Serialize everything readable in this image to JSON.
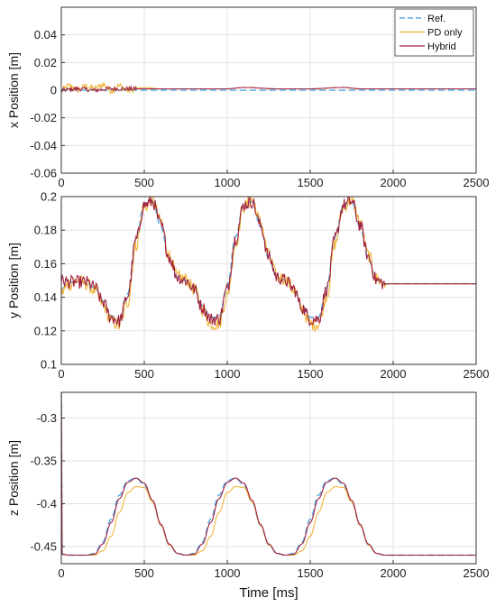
{
  "chart_data": [
    {
      "type": "line",
      "ylabel": "x Position [m]",
      "xlabel": "",
      "xlim": [
        0,
        2500
      ],
      "ylim": [
        -0.06,
        0.06
      ],
      "xticks": [
        0,
        500,
        1000,
        1500,
        2000,
        2500
      ],
      "yticks": [
        -0.06,
        -0.04,
        -0.02,
        0,
        0.02,
        0.04
      ],
      "ytick_labels": [
        "-0.06",
        "-0.04",
        "-0.02",
        "0",
        "0.02",
        "0.04"
      ],
      "grid": true,
      "legend": {
        "placement": "top-right",
        "entries": [
          {
            "label": "Ref.",
            "color": "#5DADE2",
            "style": "dashed"
          },
          {
            "label": "PD only",
            "color": "#F0B43C",
            "style": "solid"
          },
          {
            "label": "Hybrid",
            "color": "#A0203F",
            "style": "solid"
          }
        ]
      },
      "series": [
        {
          "name": "Ref.",
          "color": "#5DADE2",
          "dashed": true,
          "x": [
            0,
            250,
            500,
            750,
            1000,
            1250,
            1500,
            1750,
            2000,
            2250,
            2500
          ],
          "y": [
            0.0,
            0.0,
            0.0,
            0.0,
            0.0,
            0.0,
            0.0,
            0.0,
            0.0,
            0.0,
            0.0
          ]
        },
        {
          "name": "PD only",
          "color": "#F0B43C",
          "x": [
            0,
            50,
            100,
            150,
            200,
            250,
            300,
            350,
            400,
            500,
            600,
            800,
            1000,
            1100,
            1300,
            1500,
            1700,
            1800,
            2000,
            2200,
            2500
          ],
          "y": [
            0.0,
            0.003,
            0.0,
            0.003,
            0.001,
            0.004,
            0.0,
            0.003,
            0.0,
            0.002,
            0.001,
            0.001,
            0.001,
            0.002,
            0.001,
            0.001,
            0.002,
            0.001,
            0.001,
            0.001,
            0.001
          ],
          "noise": 0.0025,
          "noise_until": 450
        },
        {
          "name": "Hybrid",
          "color": "#A0203F",
          "x": [
            0,
            100,
            200,
            300,
            400,
            500,
            600,
            800,
            1000,
            1100,
            1300,
            1500,
            1700,
            1800,
            2000,
            2200,
            2500
          ],
          "y": [
            0.0,
            0.001,
            0.0,
            0.001,
            0.001,
            0.001,
            0.001,
            0.001,
            0.001,
            0.002,
            0.001,
            0.001,
            0.002,
            0.001,
            0.001,
            0.001,
            0.001
          ],
          "noise": 0.0015,
          "noise_until": 450
        }
      ]
    },
    {
      "type": "line",
      "ylabel": "y Position [m]",
      "xlabel": "",
      "xlim": [
        0,
        2500
      ],
      "ylim": [
        0.1,
        0.2
      ],
      "xticks": [
        0,
        500,
        1000,
        1500,
        2000,
        2500
      ],
      "yticks": [
        0.1,
        0.12,
        0.14,
        0.16,
        0.18,
        0.2
      ],
      "ytick_labels": [
        "0.1",
        "0.12",
        "0.14",
        "0.16",
        "0.18",
        "0.2"
      ],
      "grid": true,
      "series": [
        {
          "name": "Ref.",
          "color": "#5DADE2",
          "dashed": true,
          "x": [
            0,
            50,
            100,
            150,
            200,
            250,
            300,
            350,
            400,
            450,
            500,
            550,
            600,
            650,
            700,
            750,
            800,
            850,
            900,
            950,
            1000,
            1050,
            1100,
            1150,
            1200,
            1250,
            1300,
            1350,
            1400,
            1450,
            1500,
            1550,
            1600,
            1650,
            1700,
            1750,
            1800,
            1850,
            1900,
            1950,
            2000,
            2100,
            2200,
            2300,
            2400,
            2500
          ],
          "y": [
            0.145,
            0.149,
            0.149,
            0.149,
            0.146,
            0.138,
            0.129,
            0.126,
            0.142,
            0.175,
            0.196,
            0.197,
            0.182,
            0.163,
            0.152,
            0.15,
            0.145,
            0.135,
            0.128,
            0.128,
            0.146,
            0.176,
            0.195,
            0.197,
            0.182,
            0.163,
            0.152,
            0.15,
            0.145,
            0.135,
            0.128,
            0.128,
            0.146,
            0.176,
            0.195,
            0.197,
            0.182,
            0.163,
            0.15,
            0.148,
            0.148,
            0.148,
            0.148,
            0.148,
            0.148,
            0.148
          ]
        },
        {
          "name": "PD only",
          "color": "#F0B43C",
          "x": [
            0,
            50,
            100,
            150,
            200,
            250,
            300,
            350,
            400,
            450,
            500,
            550,
            600,
            650,
            700,
            750,
            800,
            850,
            900,
            950,
            1000,
            1050,
            1100,
            1150,
            1200,
            1250,
            1300,
            1350,
            1400,
            1450,
            1500,
            1550,
            1600,
            1650,
            1700,
            1750,
            1800,
            1850,
            1900,
            1950,
            2000,
            2100,
            2200,
            2300,
            2400,
            2500
          ],
          "y": [
            0.143,
            0.148,
            0.15,
            0.148,
            0.144,
            0.136,
            0.126,
            0.123,
            0.137,
            0.171,
            0.194,
            0.198,
            0.185,
            0.165,
            0.152,
            0.151,
            0.145,
            0.133,
            0.124,
            0.124,
            0.141,
            0.172,
            0.194,
            0.198,
            0.185,
            0.165,
            0.152,
            0.151,
            0.145,
            0.133,
            0.124,
            0.124,
            0.141,
            0.172,
            0.194,
            0.198,
            0.185,
            0.165,
            0.151,
            0.148,
            0.148,
            0.148,
            0.148,
            0.148,
            0.148,
            0.148
          ],
          "noise": 0.004,
          "noise_until": 1950
        },
        {
          "name": "Hybrid",
          "color": "#A0203F",
          "x": [
            0,
            50,
            100,
            150,
            200,
            250,
            300,
            350,
            400,
            450,
            500,
            550,
            600,
            650,
            700,
            750,
            800,
            850,
            900,
            950,
            1000,
            1050,
            1100,
            1150,
            1200,
            1250,
            1300,
            1350,
            1400,
            1450,
            1500,
            1550,
            1600,
            1650,
            1700,
            1750,
            1800,
            1850,
            1900,
            1950,
            2000,
            2100,
            2200,
            2300,
            2400,
            2500
          ],
          "y": [
            0.15,
            0.149,
            0.149,
            0.149,
            0.146,
            0.137,
            0.128,
            0.126,
            0.141,
            0.174,
            0.195,
            0.197,
            0.183,
            0.164,
            0.152,
            0.15,
            0.145,
            0.134,
            0.127,
            0.127,
            0.145,
            0.175,
            0.195,
            0.197,
            0.183,
            0.164,
            0.152,
            0.15,
            0.145,
            0.134,
            0.127,
            0.127,
            0.145,
            0.175,
            0.195,
            0.197,
            0.183,
            0.164,
            0.15,
            0.148,
            0.148,
            0.148,
            0.148,
            0.148,
            0.148,
            0.148
          ],
          "noise": 0.004,
          "noise_until": 1950
        }
      ]
    },
    {
      "type": "line",
      "ylabel": "z Position [m]",
      "xlabel": "Time  [ms]",
      "xlim": [
        0,
        2500
      ],
      "ylim": [
        -0.47,
        -0.27
      ],
      "xticks": [
        0,
        500,
        1000,
        1500,
        2000,
        2500
      ],
      "yticks": [
        -0.45,
        -0.4,
        -0.35,
        -0.3
      ],
      "ytick_labels": [
        "-0.45",
        "-0.4",
        "-0.35",
        "-0.3"
      ],
      "grid": true,
      "series": [
        {
          "name": "Ref.",
          "color": "#5DADE2",
          "dashed": true,
          "x": [
            0,
            5,
            50,
            100,
            150,
            200,
            250,
            300,
            350,
            400,
            450,
            500,
            550,
            600,
            650,
            700,
            750,
            800,
            850,
            900,
            950,
            1000,
            1050,
            1100,
            1150,
            1200,
            1250,
            1300,
            1350,
            1400,
            1450,
            1500,
            1550,
            1600,
            1650,
            1700,
            1750,
            1800,
            1850,
            1900,
            1950,
            2000,
            2100,
            2200,
            2300,
            2400,
            2500
          ],
          "y": [
            -0.27,
            -0.459,
            -0.46,
            -0.46,
            -0.46,
            -0.458,
            -0.445,
            -0.418,
            -0.39,
            -0.373,
            -0.37,
            -0.378,
            -0.398,
            -0.425,
            -0.448,
            -0.458,
            -0.46,
            -0.458,
            -0.445,
            -0.418,
            -0.39,
            -0.373,
            -0.37,
            -0.378,
            -0.398,
            -0.425,
            -0.448,
            -0.458,
            -0.46,
            -0.458,
            -0.445,
            -0.418,
            -0.39,
            -0.373,
            -0.37,
            -0.378,
            -0.398,
            -0.425,
            -0.448,
            -0.458,
            -0.46,
            -0.46,
            -0.46,
            -0.46,
            -0.46,
            -0.46,
            -0.46
          ]
        },
        {
          "name": "PD only",
          "color": "#F0B43C",
          "x": [
            0,
            5,
            50,
            100,
            150,
            200,
            250,
            300,
            350,
            400,
            450,
            500,
            550,
            600,
            650,
            700,
            750,
            800,
            850,
            900,
            950,
            1000,
            1050,
            1100,
            1150,
            1200,
            1250,
            1300,
            1350,
            1400,
            1450,
            1500,
            1550,
            1600,
            1650,
            1700,
            1750,
            1800,
            1850,
            1900,
            1950,
            2000,
            2100,
            2200,
            2300,
            2400,
            2500
          ],
          "y": [
            -0.27,
            -0.459,
            -0.46,
            -0.46,
            -0.46,
            -0.46,
            -0.455,
            -0.438,
            -0.41,
            -0.387,
            -0.38,
            -0.381,
            -0.398,
            -0.425,
            -0.448,
            -0.458,
            -0.46,
            -0.46,
            -0.455,
            -0.438,
            -0.41,
            -0.387,
            -0.38,
            -0.381,
            -0.398,
            -0.425,
            -0.448,
            -0.458,
            -0.46,
            -0.46,
            -0.455,
            -0.438,
            -0.41,
            -0.387,
            -0.38,
            -0.381,
            -0.398,
            -0.425,
            -0.448,
            -0.458,
            -0.46,
            -0.46,
            -0.46,
            -0.46,
            -0.46,
            -0.46,
            -0.46
          ]
        },
        {
          "name": "Hybrid",
          "color": "#A0203F",
          "x": [
            0,
            5,
            50,
            100,
            150,
            200,
            250,
            300,
            350,
            400,
            450,
            500,
            550,
            600,
            650,
            700,
            750,
            800,
            850,
            900,
            950,
            1000,
            1050,
            1100,
            1150,
            1200,
            1250,
            1300,
            1350,
            1400,
            1450,
            1500,
            1550,
            1600,
            1650,
            1700,
            1750,
            1800,
            1850,
            1900,
            1950,
            2000,
            2100,
            2200,
            2300,
            2400,
            2500
          ],
          "y": [
            -0.27,
            -0.459,
            -0.46,
            -0.46,
            -0.46,
            -0.459,
            -0.447,
            -0.422,
            -0.394,
            -0.375,
            -0.37,
            -0.376,
            -0.396,
            -0.424,
            -0.447,
            -0.458,
            -0.46,
            -0.459,
            -0.447,
            -0.422,
            -0.394,
            -0.375,
            -0.37,
            -0.376,
            -0.396,
            -0.424,
            -0.447,
            -0.458,
            -0.46,
            -0.459,
            -0.447,
            -0.422,
            -0.394,
            -0.375,
            -0.37,
            -0.376,
            -0.396,
            -0.424,
            -0.447,
            -0.458,
            -0.46,
            -0.46,
            -0.46,
            -0.46,
            -0.46,
            -0.46,
            -0.46
          ]
        }
      ]
    }
  ]
}
